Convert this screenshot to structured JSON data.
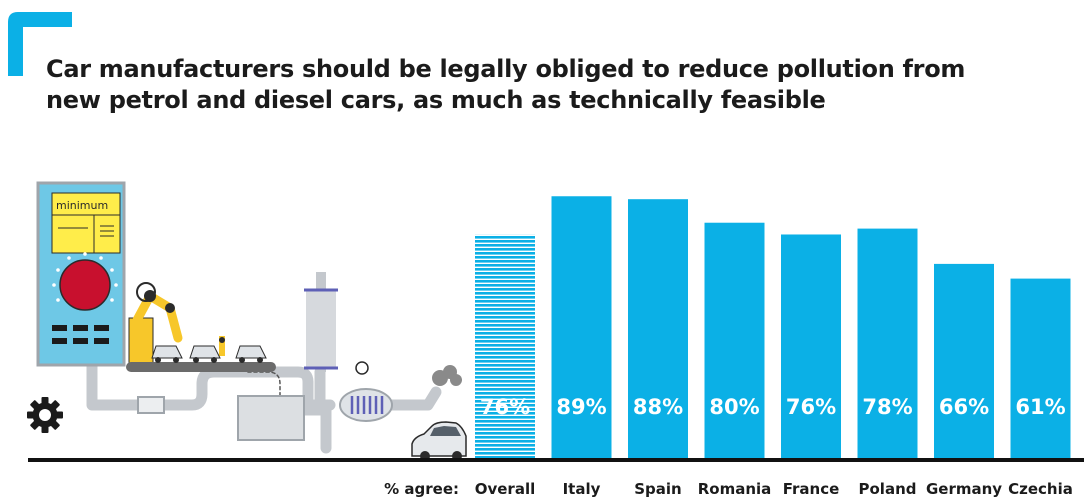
{
  "title_lines": [
    "Car manufacturers should be legally obliged to reduce pollution from",
    "new petrol and diesel cars, as much as technically feasible"
  ],
  "illustration": {
    "panel_text": "minimum",
    "icons": [
      "control-panel-icon",
      "robot-arm-icon",
      "conveyor-cars-icon",
      "exhaust-pipe-icon",
      "catalytic-converter-icon",
      "car-icon",
      "gear-icon"
    ]
  },
  "colors": {
    "bar": "#0bb0e6",
    "accent": "#0bb0e6",
    "axis": "#111111",
    "text": "#1b1b1b"
  },
  "chart_data": {
    "type": "bar",
    "axis_prefix_label": "% agree:",
    "categories": [
      "Overall",
      "Italy",
      "Spain",
      "Romania",
      "France",
      "Poland",
      "Germany",
      "Czechia"
    ],
    "values": [
      76,
      89,
      88,
      80,
      76,
      78,
      66,
      61
    ],
    "value_labels": [
      "76%",
      "89%",
      "88%",
      "80%",
      "76%",
      "78%",
      "66%",
      "61%"
    ],
    "highlight_first": true,
    "grid": false,
    "unit": "%"
  }
}
